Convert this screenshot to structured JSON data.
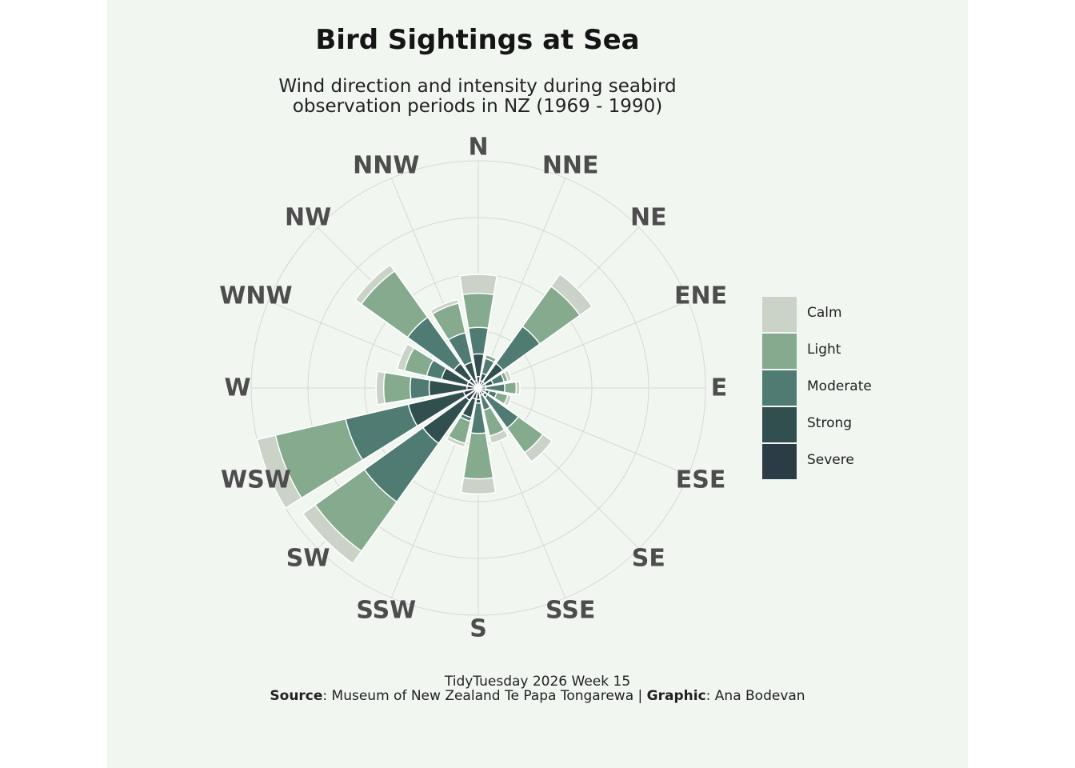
{
  "colors": {
    "background": "#f1f6f1",
    "grid": "#d4d9d4",
    "Calm": "#cbd3c9",
    "Light": "#85aa8e",
    "Moderate": "#4f7b72",
    "Strong": "#324f50",
    "Severe": "#2b3c47"
  },
  "chart_data": {
    "type": "stacked polar bar (wind rose)",
    "title": "Bird Sightings at Sea",
    "subtitle": "Wind direction and intensity during seabird\nobservation periods in NZ (1969 - 1990)",
    "directions": [
      "N",
      "NNE",
      "NE",
      "ENE",
      "E",
      "ESE",
      "SE",
      "SSE",
      "S",
      "SSW",
      "SW",
      "WSW",
      "W",
      "WNW",
      "NW",
      "NNW"
    ],
    "categories_order_inner_to_outer": [
      "Severe",
      "Strong",
      "Moderate",
      "Light",
      "Calm"
    ],
    "legend_order": [
      "Calm",
      "Light",
      "Moderate",
      "Strong",
      "Severe"
    ],
    "series": [
      {
        "name": "Severe",
        "values": [
          0.3,
          0.2,
          0.2,
          0.2,
          0.2,
          0.2,
          0.2,
          0.2,
          0.3,
          0.3,
          0.4,
          0.4,
          0.3,
          0.3,
          0.3,
          0.2
        ]
      },
      {
        "name": "Strong",
        "values": [
          0.9,
          0.4,
          0.8,
          0.4,
          0.2,
          0.3,
          0.3,
          0.2,
          0.4,
          0.8,
          1.8,
          1.9,
          1.3,
          1.0,
          0.8,
          0.7
        ]
      },
      {
        "name": "Moderate",
        "values": [
          1.6,
          0.8,
          2.0,
          0.7,
          0.7,
          0.5,
          1.3,
          0.6,
          1.2,
          0.9,
          3.7,
          3.6,
          1.8,
          1.4,
          2.3,
          1.5
        ]
      },
      {
        "name": "Light",
        "values": [
          2.5,
          0.9,
          3.3,
          0.8,
          1.0,
          0.8,
          2.1,
          1.3,
          2.4,
          1.5,
          5.3,
          5.5,
          2.5,
          2.0,
          3.8,
          2.3
        ]
      },
      {
        "name": "Calm",
        "values": [
          3.0,
          0.9,
          3.7,
          0.9,
          1.1,
          0.9,
          2.4,
          1.5,
          2.8,
          1.6,
          5.7,
          6.0,
          2.7,
          2.2,
          4.0,
          2.4
        ]
      }
    ],
    "cumulative_note": "values are cumulative outer radii per category in radial-axis units",
    "radial_max": 6.0,
    "radial_gridlines": [
      1.5,
      3.0,
      4.5,
      6.0
    ],
    "grid": true,
    "legend_position": "right"
  },
  "caption": {
    "line1": "TidyTuesday 2026  Week 15",
    "source_label": "Source",
    "source_text": ": Museum of New  Zealand Te Papa  Tongarewa | ",
    "graphic_label": "Graphic",
    "graphic_text": ":  Ana Bodevan"
  }
}
